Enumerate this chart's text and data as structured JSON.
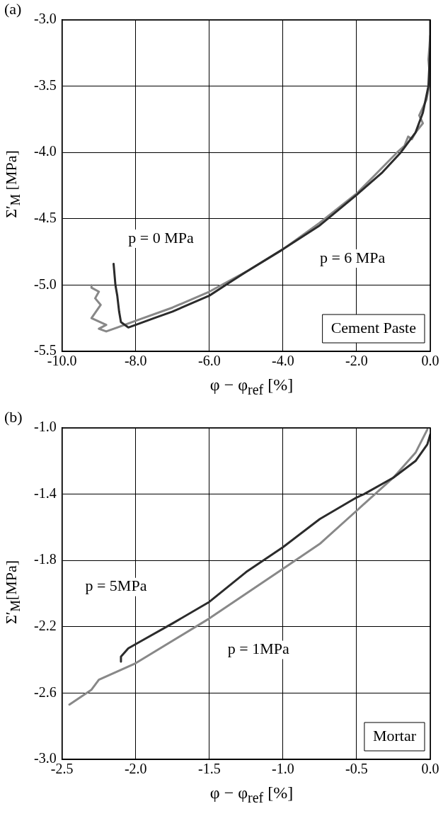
{
  "chart_data": [
    {
      "type": "line",
      "title": "(a)",
      "xlabel": "φ − φ$_{ref}$ [%]",
      "ylabel": "Σ′$_{M}$ [MPa]",
      "xlim": [
        -10,
        0
      ],
      "xticks": [
        {
          "value": -10,
          "label": "-10.0"
        },
        {
          "value": -8,
          "label": "-8.0"
        },
        {
          "value": -6,
          "label": "-6.0"
        },
        {
          "value": -4,
          "label": "-4.0"
        },
        {
          "value": -2,
          "label": "-2.0"
        },
        {
          "value": 0,
          "label": "0.0"
        }
      ],
      "ylim": [
        -5.5,
        -3.0
      ],
      "yticks": [
        {
          "value": -5.5,
          "label": "-5.5"
        },
        {
          "value": -5,
          "label": "-5.0"
        },
        {
          "value": -4.5,
          "label": "-4.5"
        },
        {
          "value": -4,
          "label": "-4.0"
        },
        {
          "value": -3.5,
          "label": "-3.5"
        },
        {
          "value": -3,
          "label": "-3.0"
        }
      ],
      "grid": true,
      "marker": "none",
      "line_style": "solid",
      "series": [
        {
          "color": "#2b2b2b",
          "x": [
            0,
            0,
            -0.05,
            -0.2,
            -0.4,
            -0.8,
            -1.3,
            -2.0,
            -3.0,
            -4.0,
            -5.0,
            -5.5,
            -6.0,
            -7.0,
            -7.5,
            -8.0,
            -8.2,
            -8.4,
            -8.45,
            -8.5,
            -8.55,
            -8.6
          ],
          "values": [
            -3.0,
            -3.2,
            -3.5,
            -3.7,
            -3.85,
            -4.0,
            -4.15,
            -4.32,
            -4.55,
            -4.73,
            -4.9,
            -4.99,
            -5.08,
            -5.2,
            -5.25,
            -5.3,
            -5.32,
            -5.28,
            -5.2,
            -5.08,
            -5.0,
            -4.84
          ]
        },
        {
          "color": "#888888",
          "x": [
            0,
            -0.05,
            0,
            -0.1,
            -0.3,
            -0.2,
            -0.4,
            -0.5,
            -0.6,
            -0.7,
            -0.9,
            -1.5,
            -2.0,
            -3.0,
            -4.0,
            -5.0,
            -6.0,
            -7.0,
            -8.0,
            -8.5,
            -8.8,
            -9.0,
            -8.8,
            -9.2,
            -8.95,
            -9.1,
            -9.0,
            -9.2,
            -9.2
          ],
          "values": [
            -3.12,
            -3.3,
            -3.45,
            -3.6,
            -3.72,
            -3.78,
            -3.85,
            -3.9,
            -3.88,
            -3.95,
            -4.0,
            -4.17,
            -4.31,
            -4.53,
            -4.73,
            -4.9,
            -5.05,
            -5.17,
            -5.27,
            -5.32,
            -5.35,
            -5.33,
            -5.3,
            -5.25,
            -5.15,
            -5.1,
            -5.05,
            -5.02,
            -5.0
          ]
        }
      ],
      "annotations": [
        "p = 0 MPa",
        "p = 6 MPa",
        "Cement Paste"
      ]
    },
    {
      "type": "line",
      "title": "(b)",
      "xlabel": "φ − φ$_{ref}$ [%]",
      "ylabel": "Σ′$_{M}$[MPa]",
      "xlim": [
        -2.5,
        0
      ],
      "xticks": [
        {
          "value": -2.5,
          "label": "-2.5"
        },
        {
          "value": -2,
          "label": "-2.0"
        },
        {
          "value": -1.5,
          "label": "-1.5"
        },
        {
          "value": -1,
          "label": "-1.0"
        },
        {
          "value": -0.5,
          "label": "-0.5"
        },
        {
          "value": 0,
          "label": "0.0"
        }
      ],
      "ylim": [
        -3.0,
        -1.0
      ],
      "yticks": [
        {
          "value": -3,
          "label": "-3.0"
        },
        {
          "value": -2.6,
          "label": "-2.6"
        },
        {
          "value": -2.2,
          "label": "-2.2"
        },
        {
          "value": -1.8,
          "label": "-1.8"
        },
        {
          "value": -1.4,
          "label": "-1.4"
        },
        {
          "value": -1,
          "label": "-1.0"
        }
      ],
      "grid": true,
      "marker": "none",
      "line_style": "solid",
      "series": [
        {
          "color": "#2b2b2b",
          "x": [
            0,
            -0.02,
            -0.1,
            -0.25,
            -0.45,
            -0.5,
            -0.75,
            -1.0,
            -1.25,
            -1.5,
            -1.75,
            -1.95,
            -2.05,
            -2.1,
            -2.1
          ],
          "values": [
            -1.04,
            -1.1,
            -1.2,
            -1.3,
            -1.4,
            -1.42,
            -1.55,
            -1.72,
            -1.87,
            -2.05,
            -2.18,
            -2.28,
            -2.33,
            -2.38,
            -2.41
          ]
        },
        {
          "color": "#888888",
          "x": [
            -2.45,
            -2.3,
            -2.25,
            -2.0,
            -1.5,
            -1.25,
            -1.0,
            -0.75,
            -0.5,
            -0.25,
            -0.1,
            -0.02
          ],
          "values": [
            -2.67,
            -2.58,
            -2.52,
            -2.42,
            -2.15,
            -2.0,
            -1.85,
            -1.7,
            -1.5,
            -1.3,
            -1.15,
            -1.01
          ]
        }
      ],
      "annotations": [
        "p = 5MPa",
        "p = 1MPa",
        "Mortar"
      ]
    }
  ]
}
